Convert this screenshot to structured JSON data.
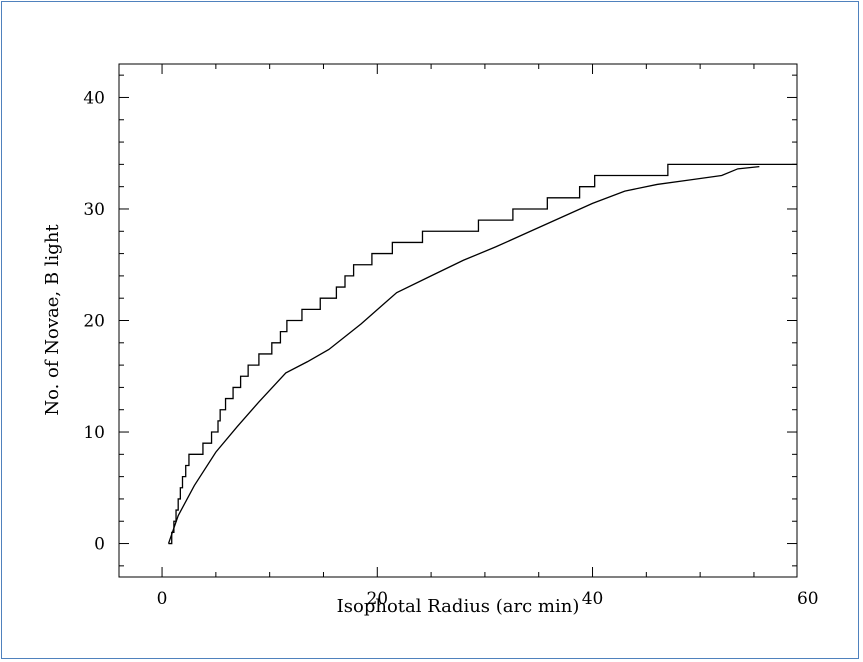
{
  "chart_data": {
    "type": "line",
    "title": "",
    "xlabel": "Isophotal Radius (arc min)",
    "ylabel": "No. of Novae, B light",
    "xlim": [
      -4,
      59
    ],
    "ylim": [
      -3,
      43
    ],
    "x_ticks": [
      0,
      20,
      40,
      60
    ],
    "y_ticks": [
      0,
      10,
      20,
      30,
      40
    ],
    "grid": false,
    "legend": "none",
    "colors": {
      "line": "#000000",
      "frame": "#4f81bd"
    },
    "series": [
      {
        "style": "step",
        "x": [
          0.6,
          0.9,
          1.1,
          1.3,
          1.5,
          1.7,
          1.9,
          2.2,
          2.5,
          2.9,
          3.8,
          4.6,
          5.2,
          5.4,
          5.6,
          5.9,
          6.6,
          7.3,
          8.0,
          9.0,
          10.2,
          11.0,
          11.6,
          11.8,
          12.2,
          13.0,
          14.7,
          16.2,
          17.0,
          17.8,
          18.6,
          19.5,
          20.5,
          21.4,
          24.2,
          29.4,
          32.6,
          35.8,
          38.8,
          40.2,
          47.0,
          59.0
        ],
        "y": [
          0,
          1,
          2,
          3,
          4,
          5,
          6,
          7,
          8,
          8,
          9,
          10,
          11,
          12,
          12,
          13,
          14,
          15,
          16,
          17,
          18,
          19,
          20,
          20,
          20,
          21,
          22,
          23,
          24,
          25,
          25,
          26,
          26,
          27,
          28,
          29,
          30,
          31,
          32,
          33,
          34,
          34
        ]
      },
      {
        "style": "smooth",
        "x": [
          0.6,
          1.5,
          3.0,
          5.0,
          7.0,
          9.0,
          11.5,
          13.5,
          15.5,
          18.5,
          21.8,
          25.0,
          28.0,
          31.0,
          34.0,
          37.0,
          40.0,
          43.0,
          46.0,
          49.0,
          52.0,
          53.5,
          55.5
        ],
        "y": [
          0,
          2.5,
          5.2,
          8.2,
          10.5,
          12.7,
          15.3,
          16.3,
          17.4,
          19.7,
          22.5,
          24.0,
          25.4,
          26.6,
          27.9,
          29.2,
          30.5,
          31.6,
          32.2,
          32.6,
          33.0,
          33.6,
          33.8
        ]
      }
    ]
  }
}
